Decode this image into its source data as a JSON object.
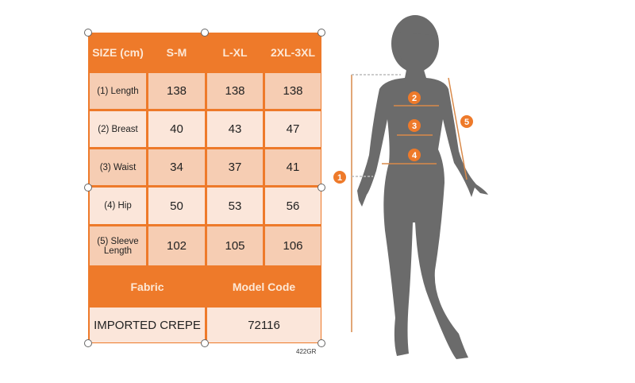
{
  "table": {
    "header": [
      "SIZE (cm)",
      "S-M",
      "L-XL",
      "2XL-3XL"
    ],
    "rows": [
      {
        "label": "(1) Length",
        "values": [
          "138",
          "138",
          "138"
        ]
      },
      {
        "label": "(2) Breast",
        "values": [
          "40",
          "43",
          "47"
        ]
      },
      {
        "label": "(3) Waist",
        "values": [
          "34",
          "37",
          "41"
        ]
      },
      {
        "label": "(4) Hip",
        "values": [
          "50",
          "53",
          "56"
        ]
      },
      {
        "label": "(5) Sleeve Length",
        "values": [
          "102",
          "105",
          "106"
        ]
      }
    ],
    "info_header": [
      "Fabric",
      "Model Code"
    ],
    "info_values": [
      "IMPORTED CREPE",
      "72116"
    ]
  },
  "code_label": "422GR",
  "markers": [
    "1",
    "2",
    "3",
    "4",
    "5"
  ],
  "colors": {
    "accent": "#ee7a2a",
    "cell_dark": "#f6cdb3",
    "cell_light": "#fbe6da",
    "silhouette": "#6b6b6b"
  }
}
